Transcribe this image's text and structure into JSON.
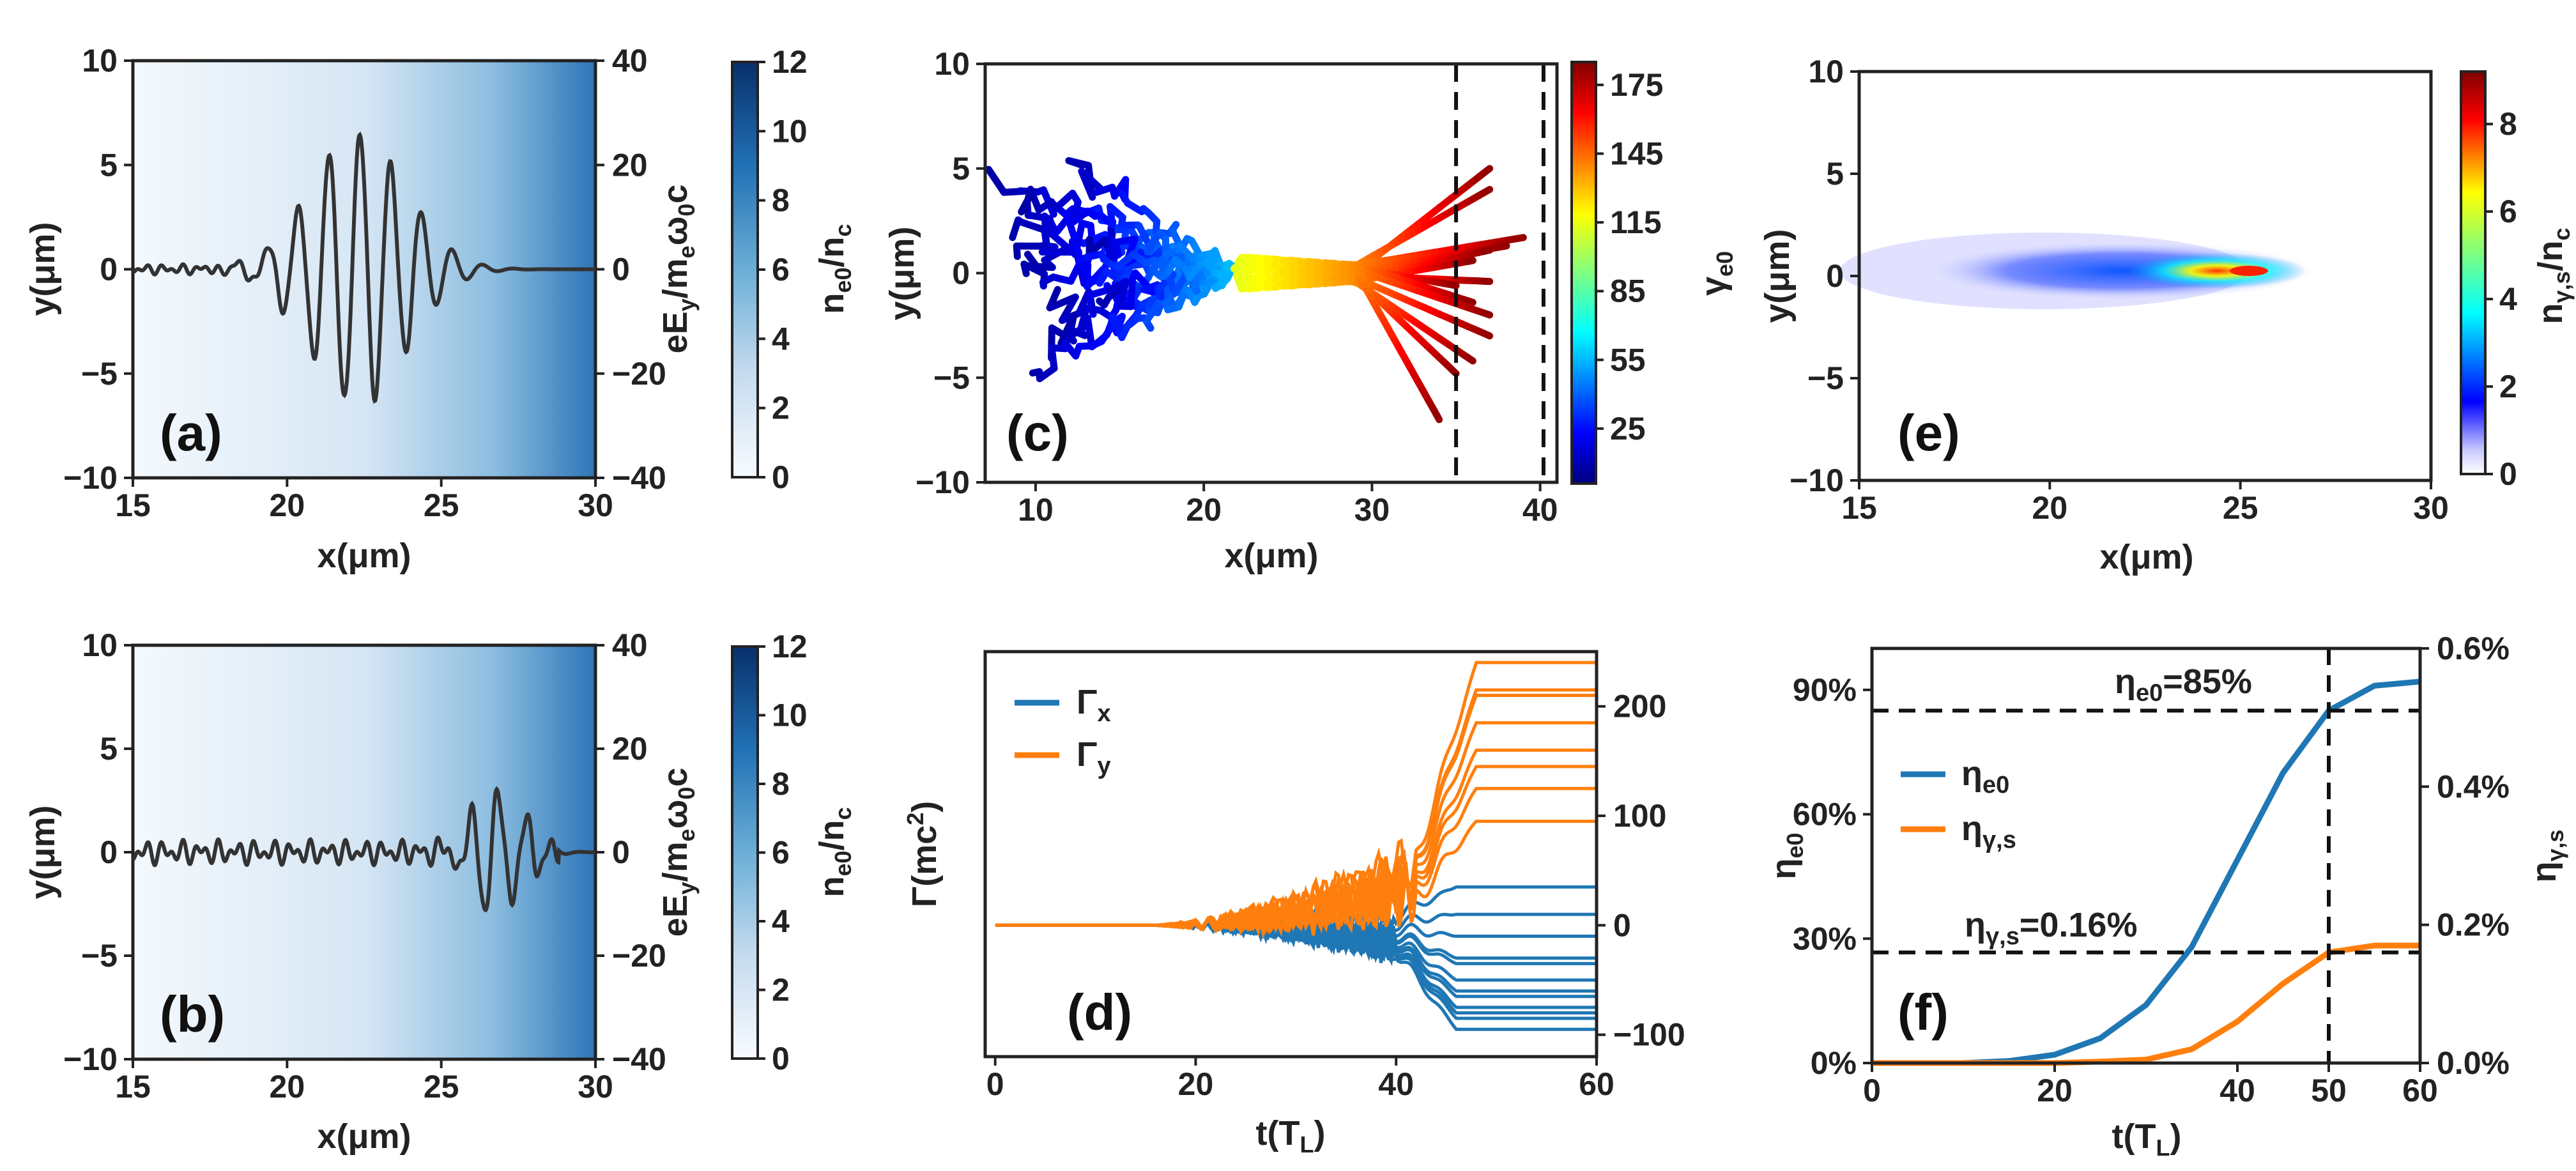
{
  "figure": {
    "panels": [
      "(a)",
      "(b)",
      "(c)",
      "(d)",
      "(e)",
      "(f)"
    ]
  },
  "colors": {
    "blue": "#1f77b4",
    "orange": "#ff7f0e",
    "field_line": "#333333",
    "density_max": "#08306b"
  },
  "chart_data": [
    {
      "id": "a",
      "panel_label": "(a)",
      "type": "heatmap",
      "xlabel": "x(μm)",
      "ylabel": "y(μm)",
      "y2label": "eE_y/m_eω_0c",
      "colorbar_label": "n_e0/n_c",
      "xlim": [
        15,
        30
      ],
      "ylim": [
        -10,
        10
      ],
      "y2lim": [
        -40,
        40
      ],
      "xticks": [
        "15",
        "20",
        "25",
        "30"
      ],
      "yticks": [
        "10",
        "5",
        "0",
        "−5",
        "−10"
      ],
      "y2ticks": [
        "40",
        "20",
        "0",
        "−20",
        "−40"
      ],
      "colorbar_ticks": [
        "12",
        "10",
        "8",
        "6",
        "4",
        "2",
        "0"
      ],
      "colorbar_range": [
        0,
        12
      ],
      "field_profile": {
        "center": 22.3,
        "peak": 26,
        "wavelength": 1.0,
        "width": 2.2,
        "noise": 1.0
      }
    },
    {
      "id": "b",
      "panel_label": "(b)",
      "type": "heatmap",
      "xlabel": "x(μm)",
      "ylabel": "y(μm)",
      "y2label": "eE_y/m_eω_0c",
      "colorbar_label": "n_e0/n_c",
      "xlim": [
        15,
        30
      ],
      "ylim": [
        -10,
        10
      ],
      "y2lim": [
        -40,
        40
      ],
      "xticks": [
        "15",
        "20",
        "25",
        "30"
      ],
      "yticks": [
        "10",
        "5",
        "0",
        "−5",
        "−10"
      ],
      "y2ticks": [
        "40",
        "20",
        "0",
        "−20",
        "−40"
      ],
      "colorbar_ticks": [
        "12",
        "10",
        "8",
        "6",
        "4",
        "2",
        "0"
      ],
      "colorbar_range": [
        0,
        12
      ],
      "field_profile": {
        "center": 26.8,
        "peak": 12,
        "wavelength": 0.9,
        "width": 1.2,
        "noise": 2.5
      }
    },
    {
      "id": "c",
      "panel_label": "(c)",
      "type": "line",
      "xlabel": "x(μm)",
      "ylabel": "y(μm)",
      "colorbar_label": "γ_e0",
      "xlim": [
        7,
        41
      ],
      "ylim": [
        -10,
        10
      ],
      "xticks": [
        "10",
        "20",
        "30",
        "40"
      ],
      "yticks": [
        "10",
        "5",
        "0",
        "−5",
        "−10"
      ],
      "colorbar_ticks": [
        "175",
        "145",
        "115",
        "85",
        "55",
        "25"
      ],
      "colorbar_range": [
        1,
        185
      ],
      "dashed_x": [
        35,
        40.2
      ],
      "trajectory_ends": [
        [
          37,
          5
        ],
        [
          37,
          4
        ],
        [
          39,
          1.7
        ],
        [
          38,
          1.3
        ],
        [
          37,
          1.1
        ],
        [
          36,
          0.6
        ],
        [
          37,
          -0.4
        ],
        [
          35,
          -0.6
        ],
        [
          36,
          -1.4
        ],
        [
          37,
          -2
        ],
        [
          37,
          -3
        ],
        [
          36,
          -4.2
        ],
        [
          35,
          -4.8
        ],
        [
          34,
          -7
        ]
      ],
      "trajectory_starts": [
        [
          8,
          4.2
        ],
        [
          8.5,
          3
        ],
        [
          9,
          2.2
        ],
        [
          10,
          0.5
        ],
        [
          9,
          -0.5
        ],
        [
          11,
          -1.5
        ],
        [
          12,
          -2.5
        ],
        [
          11,
          -3.7
        ],
        [
          10,
          -4.5
        ],
        [
          13,
          1.5
        ],
        [
          12,
          5.2
        ],
        [
          10,
          3.8
        ],
        [
          14,
          -1
        ],
        [
          9,
          1.2
        ]
      ]
    },
    {
      "id": "d",
      "panel_label": "(d)",
      "type": "line",
      "xlabel": "t(T_L)",
      "ylabel": "Γ(mc^2)",
      "xlim": [
        -1,
        60
      ],
      "ylim": [
        -120,
        250
      ],
      "xticks": [
        "0",
        "20",
        "40",
        "60"
      ],
      "y2ticks": [
        "200",
        "100",
        "0",
        "−100"
      ],
      "y2tick_values": [
        200,
        100,
        0,
        -100
      ],
      "series": [
        {
          "name": "Γ_x",
          "final_values": [
            35,
            10,
            -10,
            -30,
            -35,
            -50,
            -60,
            -65,
            -75,
            -80,
            -85,
            -95
          ]
        },
        {
          "name": "Γ_y",
          "final_values": [
            240,
            215,
            210,
            185,
            160,
            145,
            125,
            95
          ]
        }
      ]
    },
    {
      "id": "e",
      "panel_label": "(e)",
      "type": "heatmap",
      "xlabel": "x(μm)",
      "ylabel": "y(μm)",
      "colorbar_label": "n_γ,s/n_c",
      "xlim": [
        15,
        30
      ],
      "ylim": [
        -10,
        10
      ],
      "xticks": [
        "15",
        "20",
        "25",
        "30"
      ],
      "yticks": [
        "10",
        "5",
        "0",
        "−5",
        "−10"
      ],
      "colorbar_ticks": [
        "8",
        "6",
        "4",
        "2",
        "0"
      ],
      "colorbar_range": [
        0,
        9.2
      ]
    },
    {
      "id": "f",
      "panel_label": "(f)",
      "type": "line",
      "xlabel": "t(T_L)",
      "ylabel": "η_e0",
      "y2label": "η_γ,s",
      "xlim": [
        0,
        60
      ],
      "ylim": [
        0,
        100
      ],
      "y2lim": [
        0,
        0.6
      ],
      "xticks": [
        "0",
        "20",
        "40",
        "50",
        "60"
      ],
      "yticks": [
        "90%",
        "60%",
        "30%",
        "0%"
      ],
      "y2ticks": [
        "0.6%",
        "0.4%",
        "0.2%",
        "0.0%"
      ],
      "x": [
        0,
        5,
        10,
        15,
        20,
        25,
        30,
        35,
        40,
        45,
        50,
        55,
        60
      ],
      "series": [
        {
          "name": "η_e0",
          "axis": "left",
          "values": [
            0,
            0,
            0,
            0.5,
            2,
            6,
            14,
            28,
            49,
            70,
            85,
            91,
            92
          ]
        },
        {
          "name": "η_γ,s",
          "axis": "right",
          "values": [
            0,
            0,
            0,
            0,
            0,
            0.002,
            0.005,
            0.02,
            0.06,
            0.115,
            0.16,
            0.17,
            0.17
          ]
        }
      ],
      "annotations": [
        {
          "text": "η_e0=85%",
          "sub": "e0",
          "base": "η",
          "tail": "=85%"
        },
        {
          "text": "η_γ,s=0.16%",
          "sub": "γ,s",
          "base": "η",
          "tail": "=0.16%"
        }
      ],
      "dashed_x": 50,
      "dashed_y_left": 85,
      "dashed_y_right": 0.16
    }
  ]
}
